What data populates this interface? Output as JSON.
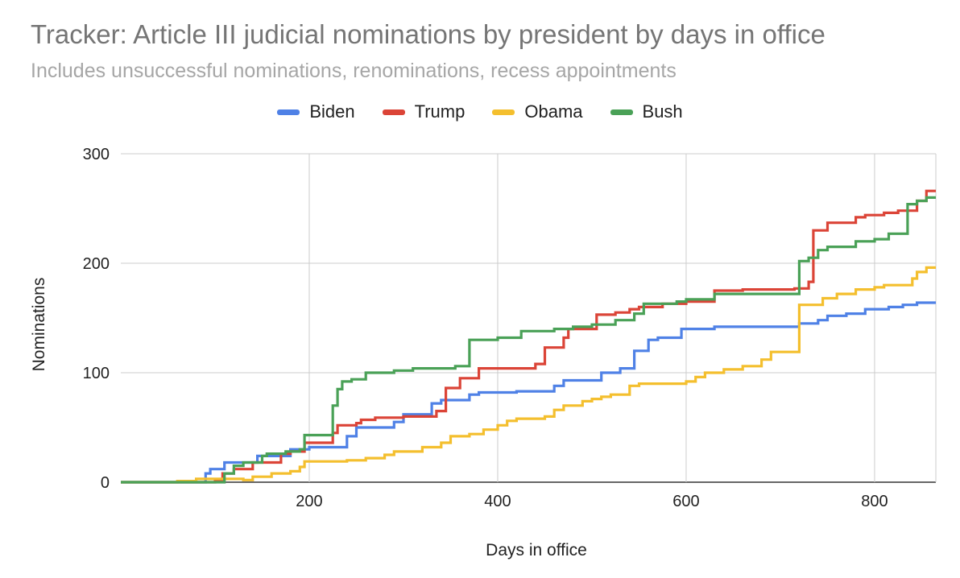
{
  "chart_data": {
    "type": "line",
    "title": "Tracker: Article III judicial nominations by president by days in office",
    "subtitle": "Includes unsuccessful nominations, renominations, recess appointments",
    "xlabel": "Days in office",
    "ylabel": "Nominations",
    "xlim": [
      0,
      865
    ],
    "ylim": [
      0,
      300
    ],
    "x_ticks": [
      200,
      400,
      600,
      800
    ],
    "y_ticks": [
      0,
      100,
      200,
      300
    ],
    "x_tick_labels": [
      "200",
      "400",
      "600",
      "800"
    ],
    "y_tick_labels": [
      "0",
      "100",
      "200",
      "300"
    ],
    "grid": true,
    "legend_position": "top",
    "step": true,
    "series": [
      {
        "name": "Biden",
        "color": "#4f81e6",
        "points": [
          [
            0,
            0
          ],
          [
            90,
            0
          ],
          [
            90,
            8
          ],
          [
            95,
            8
          ],
          [
            95,
            12
          ],
          [
            110,
            12
          ],
          [
            110,
            18
          ],
          [
            145,
            18
          ],
          [
            145,
            24
          ],
          [
            180,
            24
          ],
          [
            180,
            30
          ],
          [
            200,
            30
          ],
          [
            200,
            32
          ],
          [
            240,
            32
          ],
          [
            240,
            42
          ],
          [
            250,
            42
          ],
          [
            250,
            50
          ],
          [
            290,
            50
          ],
          [
            290,
            55
          ],
          [
            300,
            55
          ],
          [
            300,
            62
          ],
          [
            330,
            62
          ],
          [
            330,
            72
          ],
          [
            340,
            72
          ],
          [
            340,
            75
          ],
          [
            370,
            75
          ],
          [
            370,
            80
          ],
          [
            380,
            80
          ],
          [
            380,
            82
          ],
          [
            420,
            82
          ],
          [
            420,
            83
          ],
          [
            460,
            83
          ],
          [
            460,
            88
          ],
          [
            470,
            88
          ],
          [
            470,
            93
          ],
          [
            510,
            93
          ],
          [
            510,
            100
          ],
          [
            530,
            100
          ],
          [
            530,
            104
          ],
          [
            545,
            104
          ],
          [
            545,
            120
          ],
          [
            560,
            120
          ],
          [
            560,
            130
          ],
          [
            570,
            130
          ],
          [
            570,
            132
          ],
          [
            595,
            132
          ],
          [
            595,
            140
          ],
          [
            630,
            140
          ],
          [
            630,
            142
          ],
          [
            720,
            142
          ],
          [
            720,
            145
          ],
          [
            740,
            145
          ],
          [
            740,
            148
          ],
          [
            750,
            148
          ],
          [
            750,
            152
          ],
          [
            770,
            152
          ],
          [
            770,
            154
          ],
          [
            790,
            154
          ],
          [
            790,
            158
          ],
          [
            815,
            158
          ],
          [
            815,
            160
          ],
          [
            830,
            160
          ],
          [
            830,
            162
          ],
          [
            845,
            162
          ],
          [
            845,
            164
          ],
          [
            865,
            164
          ]
        ]
      },
      {
        "name": "Trump",
        "color": "#db4437",
        "points": [
          [
            0,
            0
          ],
          [
            100,
            0
          ],
          [
            100,
            2
          ],
          [
            108,
            2
          ],
          [
            108,
            8
          ],
          [
            120,
            8
          ],
          [
            120,
            12
          ],
          [
            140,
            12
          ],
          [
            140,
            18
          ],
          [
            160,
            18
          ],
          [
            160,
            18
          ],
          [
            170,
            18
          ],
          [
            170,
            26
          ],
          [
            180,
            26
          ],
          [
            180,
            28
          ],
          [
            195,
            28
          ],
          [
            195,
            36
          ],
          [
            225,
            36
          ],
          [
            225,
            45
          ],
          [
            230,
            45
          ],
          [
            230,
            52
          ],
          [
            250,
            52
          ],
          [
            250,
            54
          ],
          [
            255,
            54
          ],
          [
            255,
            57
          ],
          [
            270,
            57
          ],
          [
            270,
            59
          ],
          [
            300,
            59
          ],
          [
            300,
            60
          ],
          [
            335,
            60
          ],
          [
            335,
            65
          ],
          [
            345,
            65
          ],
          [
            345,
            86
          ],
          [
            360,
            86
          ],
          [
            360,
            95
          ],
          [
            380,
            95
          ],
          [
            380,
            104
          ],
          [
            440,
            104
          ],
          [
            440,
            108
          ],
          [
            450,
            108
          ],
          [
            450,
            123
          ],
          [
            470,
            123
          ],
          [
            470,
            132
          ],
          [
            475,
            132
          ],
          [
            475,
            140
          ],
          [
            505,
            140
          ],
          [
            505,
            153
          ],
          [
            525,
            153
          ],
          [
            525,
            155
          ],
          [
            540,
            155
          ],
          [
            540,
            158
          ],
          [
            550,
            158
          ],
          [
            550,
            160
          ],
          [
            575,
            160
          ],
          [
            575,
            163
          ],
          [
            600,
            163
          ],
          [
            600,
            165
          ],
          [
            630,
            165
          ],
          [
            630,
            175
          ],
          [
            660,
            175
          ],
          [
            660,
            176
          ],
          [
            715,
            176
          ],
          [
            715,
            177
          ],
          [
            730,
            177
          ],
          [
            730,
            183
          ],
          [
            735,
            183
          ],
          [
            735,
            230
          ],
          [
            750,
            230
          ],
          [
            750,
            237
          ],
          [
            780,
            237
          ],
          [
            780,
            242
          ],
          [
            790,
            242
          ],
          [
            790,
            244
          ],
          [
            810,
            244
          ],
          [
            810,
            246
          ],
          [
            825,
            246
          ],
          [
            825,
            248
          ],
          [
            845,
            248
          ],
          [
            845,
            257
          ],
          [
            855,
            257
          ],
          [
            855,
            266
          ],
          [
            865,
            266
          ]
        ]
      },
      {
        "name": "Obama",
        "color": "#f4bf2e",
        "points": [
          [
            0,
            0
          ],
          [
            60,
            0
          ],
          [
            60,
            1
          ],
          [
            80,
            1
          ],
          [
            80,
            3
          ],
          [
            130,
            3
          ],
          [
            130,
            2
          ],
          [
            140,
            2
          ],
          [
            140,
            5
          ],
          [
            160,
            5
          ],
          [
            160,
            8
          ],
          [
            180,
            8
          ],
          [
            180,
            10
          ],
          [
            190,
            10
          ],
          [
            190,
            14
          ],
          [
            195,
            14
          ],
          [
            195,
            19
          ],
          [
            240,
            19
          ],
          [
            240,
            20
          ],
          [
            260,
            20
          ],
          [
            260,
            22
          ],
          [
            280,
            22
          ],
          [
            280,
            25
          ],
          [
            290,
            25
          ],
          [
            290,
            28
          ],
          [
            320,
            28
          ],
          [
            320,
            32
          ],
          [
            340,
            32
          ],
          [
            340,
            36
          ],
          [
            350,
            36
          ],
          [
            350,
            42
          ],
          [
            370,
            42
          ],
          [
            370,
            44
          ],
          [
            385,
            44
          ],
          [
            385,
            48
          ],
          [
            400,
            48
          ],
          [
            400,
            52
          ],
          [
            410,
            52
          ],
          [
            410,
            56
          ],
          [
            420,
            56
          ],
          [
            420,
            58
          ],
          [
            450,
            58
          ],
          [
            450,
            60
          ],
          [
            460,
            60
          ],
          [
            460,
            66
          ],
          [
            470,
            66
          ],
          [
            470,
            70
          ],
          [
            490,
            70
          ],
          [
            490,
            74
          ],
          [
            500,
            74
          ],
          [
            500,
            76
          ],
          [
            510,
            76
          ],
          [
            510,
            78
          ],
          [
            520,
            78
          ],
          [
            520,
            80
          ],
          [
            540,
            80
          ],
          [
            540,
            88
          ],
          [
            550,
            88
          ],
          [
            550,
            90
          ],
          [
            600,
            90
          ],
          [
            600,
            92
          ],
          [
            610,
            92
          ],
          [
            610,
            96
          ],
          [
            620,
            96
          ],
          [
            620,
            100
          ],
          [
            640,
            100
          ],
          [
            640,
            103
          ],
          [
            660,
            103
          ],
          [
            660,
            106
          ],
          [
            680,
            106
          ],
          [
            680,
            112
          ],
          [
            690,
            112
          ],
          [
            690,
            119
          ],
          [
            720,
            119
          ],
          [
            720,
            162
          ],
          [
            745,
            162
          ],
          [
            745,
            168
          ],
          [
            760,
            168
          ],
          [
            760,
            172
          ],
          [
            780,
            172
          ],
          [
            780,
            176
          ],
          [
            800,
            176
          ],
          [
            800,
            178
          ],
          [
            810,
            178
          ],
          [
            810,
            180
          ],
          [
            840,
            180
          ],
          [
            840,
            186
          ],
          [
            845,
            186
          ],
          [
            845,
            192
          ],
          [
            855,
            192
          ],
          [
            855,
            196
          ],
          [
            865,
            196
          ]
        ]
      },
      {
        "name": "Bush",
        "color": "#4aa157",
        "points": [
          [
            0,
            0
          ],
          [
            110,
            0
          ],
          [
            110,
            8
          ],
          [
            120,
            8
          ],
          [
            120,
            15
          ],
          [
            130,
            15
          ],
          [
            130,
            18
          ],
          [
            150,
            18
          ],
          [
            150,
            24
          ],
          [
            155,
            24
          ],
          [
            155,
            26
          ],
          [
            175,
            26
          ],
          [
            175,
            28
          ],
          [
            190,
            28
          ],
          [
            190,
            30
          ],
          [
            195,
            30
          ],
          [
            195,
            43
          ],
          [
            225,
            43
          ],
          [
            225,
            70
          ],
          [
            230,
            70
          ],
          [
            230,
            85
          ],
          [
            235,
            85
          ],
          [
            235,
            92
          ],
          [
            245,
            92
          ],
          [
            245,
            94
          ],
          [
            260,
            94
          ],
          [
            260,
            100
          ],
          [
            290,
            100
          ],
          [
            290,
            102
          ],
          [
            310,
            102
          ],
          [
            310,
            104
          ],
          [
            355,
            104
          ],
          [
            355,
            106
          ],
          [
            370,
            106
          ],
          [
            370,
            130
          ],
          [
            400,
            130
          ],
          [
            400,
            132
          ],
          [
            425,
            132
          ],
          [
            425,
            138
          ],
          [
            460,
            138
          ],
          [
            460,
            140
          ],
          [
            480,
            140
          ],
          [
            480,
            142
          ],
          [
            500,
            142
          ],
          [
            500,
            144
          ],
          [
            525,
            144
          ],
          [
            525,
            148
          ],
          [
            545,
            148
          ],
          [
            545,
            154
          ],
          [
            555,
            154
          ],
          [
            555,
            163
          ],
          [
            590,
            163
          ],
          [
            590,
            165
          ],
          [
            600,
            165
          ],
          [
            600,
            167
          ],
          [
            630,
            167
          ],
          [
            630,
            172
          ],
          [
            720,
            172
          ],
          [
            720,
            202
          ],
          [
            730,
            202
          ],
          [
            730,
            205
          ],
          [
            740,
            205
          ],
          [
            740,
            212
          ],
          [
            750,
            212
          ],
          [
            750,
            215
          ],
          [
            780,
            215
          ],
          [
            780,
            220
          ],
          [
            800,
            220
          ],
          [
            800,
            222
          ],
          [
            815,
            222
          ],
          [
            815,
            227
          ],
          [
            835,
            227
          ],
          [
            835,
            254
          ],
          [
            845,
            254
          ],
          [
            845,
            257
          ],
          [
            855,
            257
          ],
          [
            855,
            260
          ],
          [
            865,
            260
          ]
        ]
      }
    ]
  }
}
